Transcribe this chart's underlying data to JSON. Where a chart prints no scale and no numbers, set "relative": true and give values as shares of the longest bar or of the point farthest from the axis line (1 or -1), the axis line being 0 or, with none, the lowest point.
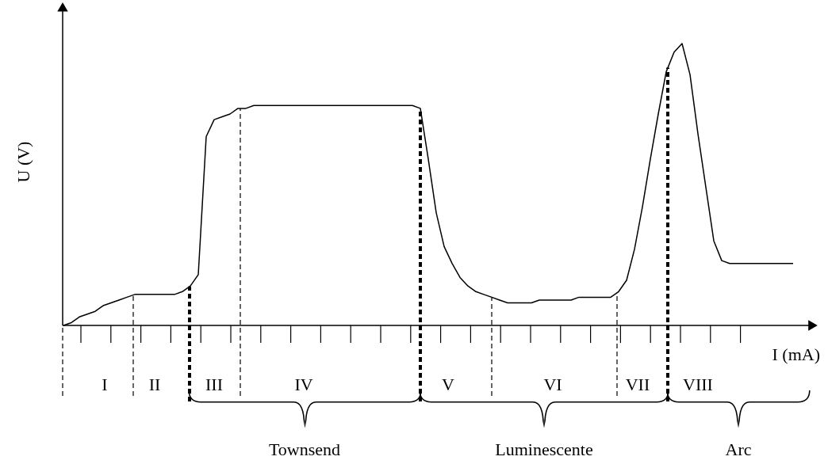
{
  "chart_data": {
    "type": "line",
    "relative": true,
    "xlabel": "I (mA)",
    "ylabel": "U (V)",
    "categories": [
      null,
      null,
      null,
      null,
      null,
      null,
      null,
      null,
      null,
      null,
      null,
      null,
      null,
      null,
      null,
      null,
      null,
      null,
      null,
      null,
      null,
      null,
      null,
      null,
      null,
      null,
      null,
      null,
      null,
      null,
      null,
      null,
      null,
      null,
      null,
      null,
      null,
      null,
      null,
      null,
      null,
      null,
      null,
      null,
      null,
      null,
      null,
      null,
      null,
      null,
      null,
      null,
      null,
      null,
      null,
      null,
      null,
      null,
      null,
      null,
      null,
      null,
      null,
      null,
      null,
      null,
      null,
      null,
      null,
      null,
      null,
      null,
      null,
      null,
      null,
      null,
      null,
      null,
      null,
      null,
      null,
      null,
      null,
      null,
      null,
      null,
      null,
      null,
      null,
      null,
      null,
      null,
      null
    ],
    "series": [
      {
        "color": "#000000",
        "values": [
          0,
          0.01,
          0.03,
          0.04,
          0.05,
          0.07,
          0.08,
          0.09,
          0.1,
          0.11,
          0.11,
          0.11,
          0.11,
          0.11,
          0.11,
          0.12,
          0.14,
          0.18,
          0.67,
          0.73,
          0.74,
          0.75,
          0.77,
          0.77,
          0.78,
          0.78,
          0.78,
          0.78,
          0.78,
          0.78,
          0.78,
          0.78,
          0.78,
          0.78,
          0.78,
          0.78,
          0.78,
          0.78,
          0.78,
          0.78,
          0.78,
          0.78,
          0.78,
          0.78,
          0.78,
          0.77,
          0.59,
          0.4,
          0.28,
          0.22,
          0.17,
          0.14,
          0.12,
          0.11,
          0.1,
          0.09,
          0.08,
          0.08,
          0.08,
          0.08,
          0.09,
          0.09,
          0.09,
          0.09,
          0.09,
          0.1,
          0.1,
          0.1,
          0.1,
          0.1,
          0.12,
          0.16,
          0.27,
          0.42,
          0.59,
          0.75,
          0.9,
          0.97,
          1,
          0.89,
          0.68,
          0.49,
          0.3,
          0.23,
          0.22,
          0.22,
          0.22,
          0.22,
          0.22,
          0.22,
          0.22,
          0.22,
          0.22
        ]
      }
    ],
    "annotations": [
      "I",
      "II",
      "III",
      "IV",
      "V",
      "VI",
      "VII",
      "VIII",
      "Townsend",
      "Luminescente",
      "Arc"
    ]
  }
}
